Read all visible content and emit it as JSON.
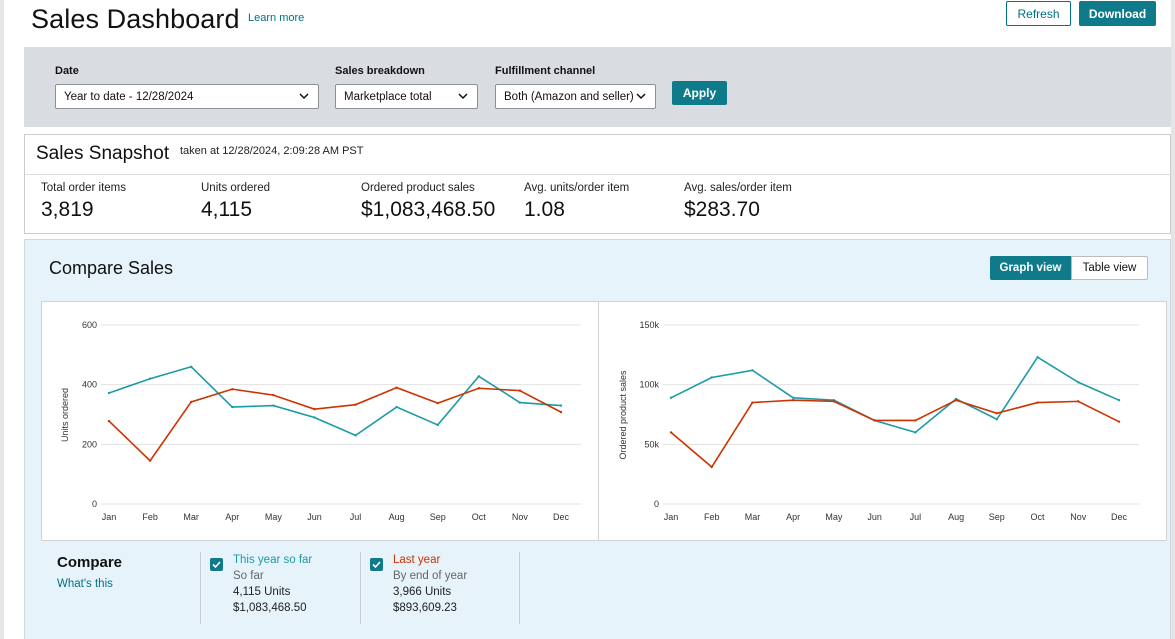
{
  "header": {
    "title": "Sales Dashboard",
    "learn_more": "Learn more",
    "refresh_label": "Refresh",
    "download_label": "Download"
  },
  "filters": {
    "date_label": "Date",
    "date_value": "Year to date - 12/28/2024",
    "breakdown_label": "Sales breakdown",
    "breakdown_value": "Marketplace total",
    "channel_label": "Fulfillment channel",
    "channel_value": "Both (Amazon and seller)",
    "apply_label": "Apply"
  },
  "snapshot": {
    "title": "Sales Snapshot",
    "taken_at": "taken at 12/28/2024, 2:09:28 AM PST",
    "metrics": [
      {
        "label": "Total order items",
        "value": "3,819"
      },
      {
        "label": "Units ordered",
        "value": "4,115"
      },
      {
        "label": "Ordered product sales",
        "value": "$1,083,468.50"
      },
      {
        "label": "Avg. units/order item",
        "value": "1.08"
      },
      {
        "label": "Avg. sales/order item",
        "value": "$283.70"
      }
    ]
  },
  "compare": {
    "title": "Compare Sales",
    "graph_view_label": "Graph view",
    "table_view_label": "Table view",
    "compare_label": "Compare",
    "whats_this": "What's this",
    "legend": [
      {
        "name": "This year so far",
        "sub": "So far",
        "units": "4,115 Units",
        "sales": "$1,083,468.50",
        "color": "#1a9ba6",
        "checked": true
      },
      {
        "name": "Last year",
        "sub": "By end of year",
        "units": "3,966 Units",
        "sales": "$893,609.23",
        "color": "#cc3300",
        "checked": true
      }
    ]
  },
  "colors": {
    "accent": "#0f7b8a",
    "link": "#007185",
    "this_year": "#1a9ba6",
    "last_year": "#cc3300",
    "filter_bar": "#d9dde1",
    "compare_bg": "#e6f3fb"
  },
  "chart_data": [
    {
      "type": "line",
      "title": "",
      "xlabel": "",
      "ylabel": "Units ordered",
      "categories": [
        "Jan",
        "Feb",
        "Mar",
        "Apr",
        "May",
        "Jun",
        "Jul",
        "Aug",
        "Sep",
        "Oct",
        "Nov",
        "Dec"
      ],
      "ylim": [
        0,
        600
      ],
      "yticks": [
        0,
        200,
        400,
        600
      ],
      "ytick_labels": [
        "0",
        "200",
        "400",
        "600"
      ],
      "grid": true,
      "series": [
        {
          "name": "This year so far",
          "color": "#1a9ba6",
          "values": [
            372,
            420,
            460,
            325,
            330,
            290,
            230,
            325,
            265,
            428,
            340,
            330
          ]
        },
        {
          "name": "Last year",
          "color": "#cc3300",
          "values": [
            278,
            145,
            342,
            385,
            365,
            318,
            333,
            390,
            338,
            388,
            380,
            308
          ]
        }
      ]
    },
    {
      "type": "line",
      "title": "",
      "xlabel": "",
      "ylabel": "Ordered product sales",
      "categories": [
        "Jan",
        "Feb",
        "Mar",
        "Apr",
        "May",
        "Jun",
        "Jul",
        "Aug",
        "Sep",
        "Oct",
        "Nov",
        "Dec"
      ],
      "ylim": [
        0,
        150000
      ],
      "yticks": [
        0,
        50000,
        100000,
        150000
      ],
      "ytick_labels": [
        "0",
        "50k",
        "100k",
        "150k"
      ],
      "grid": true,
      "series": [
        {
          "name": "This year so far",
          "color": "#1a9ba6",
          "values": [
            89000,
            106000,
            112000,
            89000,
            87000,
            70000,
            60000,
            88000,
            71000,
            123000,
            102000,
            87000
          ]
        },
        {
          "name": "Last year",
          "color": "#cc3300",
          "values": [
            60000,
            31000,
            85000,
            87000,
            86000,
            70000,
            70000,
            87000,
            76000,
            85000,
            86000,
            69000
          ]
        }
      ]
    }
  ]
}
